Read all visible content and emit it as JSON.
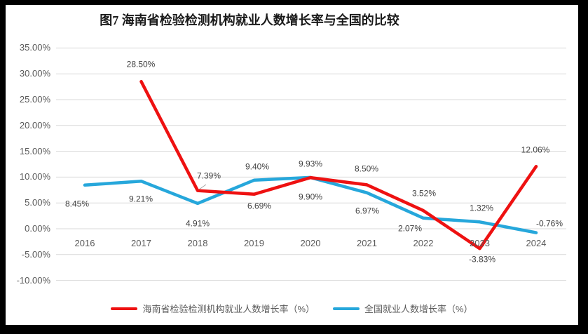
{
  "title": "图7 海南省检验检测机构就业人数增长率与全国的比较",
  "colors": {
    "hainan_line": "#EE1111",
    "national_line": "#26A7DB",
    "gridline": "#D9D9D9",
    "axis_text": "#595959",
    "data_label_text": "#404040",
    "leader_line": "#A6A6A6",
    "frame": "#000000",
    "background": "#FFFFFF"
  },
  "chart_data": {
    "type": "line",
    "title": "图7 海南省检验检测机构就业人数增长率与全国的比较",
    "categories": [
      "2016",
      "2017",
      "2018",
      "2019",
      "2020",
      "2021",
      "2022",
      "2023",
      "2024"
    ],
    "series": [
      {
        "name": "海南省检验检测机构就业人数增长率（%）",
        "color": "#EE1111",
        "values": [
          null,
          28.5,
          7.39,
          6.69,
          9.9,
          8.5,
          3.52,
          -3.83,
          12.06
        ],
        "labels": [
          "",
          "28.50%",
          "7.39%",
          "6.69%",
          "9.90%",
          "8.50%",
          "3.52%",
          "-3.83%",
          "12.06%"
        ]
      },
      {
        "name": "全国就业人数增长率（%）",
        "color": "#26A7DB",
        "values": [
          8.45,
          9.21,
          4.91,
          9.4,
          9.93,
          6.97,
          2.07,
          1.32,
          -0.76
        ],
        "labels": [
          "8.45%",
          "9.21%",
          "4.91%",
          "9.40%",
          "9.93%",
          "6.97%",
          "2.07%",
          "1.32%",
          "-0.76%"
        ]
      }
    ],
    "y_axis": {
      "ticks": [
        "35.00%",
        "30.00%",
        "25.00%",
        "20.00%",
        "15.00%",
        "10.00%",
        "5.00%",
        "0.00%",
        "-5.00%",
        "-10.00%"
      ],
      "tick_values": [
        35,
        30,
        25,
        20,
        15,
        10,
        5,
        0,
        -5,
        -10
      ],
      "min": -10,
      "max": 35
    },
    "grid": true,
    "legend_position": "bottom"
  }
}
